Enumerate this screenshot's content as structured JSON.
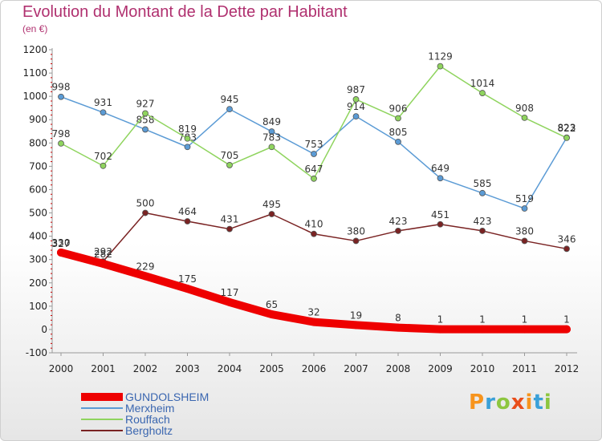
{
  "title": "Evolution du Montant de la Dette par Habitant",
  "unit": "(en €)",
  "logo": {
    "text": "Proxiti",
    "colors": [
      "#f7941d",
      "#3aa0d8",
      "#8dc63f",
      "#e94e1b",
      "#f7941d",
      "#3aa0d8",
      "#8dc63f"
    ]
  },
  "chart_data": {
    "type": "line",
    "title": "Evolution du Montant de la Dette par Habitant",
    "ylabel": "(en €)",
    "xlabel": "",
    "x": [
      "2000",
      "2001",
      "2002",
      "2003",
      "2004",
      "2005",
      "2006",
      "2007",
      "2008",
      "2009",
      "2010",
      "2011",
      "2012"
    ],
    "ylim": [
      -100,
      1200
    ],
    "yticks": [
      -100,
      0,
      100,
      200,
      300,
      400,
      500,
      600,
      700,
      800,
      900,
      1000,
      1100,
      1200
    ],
    "grid": false,
    "legend": "bottom-left",
    "series": [
      {
        "name": "Merxheim",
        "color": "#5b9bd5",
        "values": [
          998,
          931,
          858,
          783,
          945,
          849,
          753,
          914,
          805,
          649,
          585,
          519,
          823
        ]
      },
      {
        "name": "Rouffach",
        "color": "#8fd45e",
        "values": [
          798,
          702,
          927,
          819,
          705,
          783,
          647,
          987,
          906,
          1129,
          1014,
          908,
          822
        ]
      },
      {
        "name": "Bergholtz",
        "color": "#7a2323",
        "values": [
          327,
          292,
          500,
          464,
          431,
          495,
          410,
          380,
          423,
          451,
          423,
          380,
          346
        ]
      },
      {
        "name": "GUNDOLSHEIM",
        "color": "#ee0000",
        "values": [
          330,
          282,
          229,
          175,
          117,
          65,
          32,
          19,
          8,
          1,
          1,
          1,
          1
        ]
      }
    ],
    "legend_order": [
      "GUNDOLSHEIM",
      "Merxheim",
      "Rouffach",
      "Bergholtz"
    ]
  }
}
